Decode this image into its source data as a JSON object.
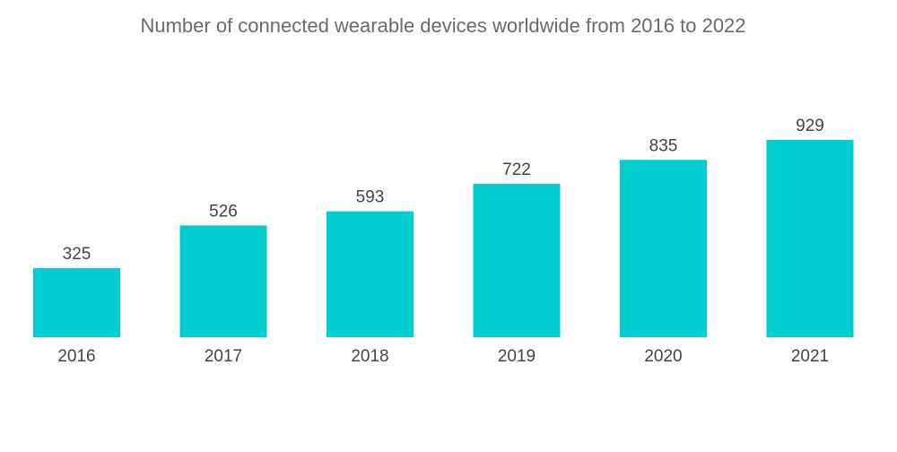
{
  "chart_data": {
    "type": "bar",
    "title": "Number of connected wearable devices worldwide from 2016 to 2022",
    "xlabel": "",
    "ylabel": "",
    "categories": [
      "2016",
      "2017",
      "2018",
      "2019",
      "2020",
      "2021"
    ],
    "values": [
      325,
      526,
      593,
      722,
      835,
      929
    ],
    "ylim": [
      0,
      929
    ],
    "grid": false,
    "data_labels": true,
    "colors": {
      "bar": "#00CED1",
      "label": "#444444",
      "title": "#6b6b6b"
    }
  }
}
